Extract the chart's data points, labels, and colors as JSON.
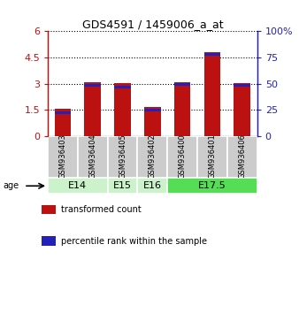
{
  "title": "GDS4591 / 1459006_a_at",
  "samples": [
    "GSM936403",
    "GSM936404",
    "GSM936405",
    "GSM936402",
    "GSM936400",
    "GSM936401",
    "GSM936406"
  ],
  "transformed_counts": [
    1.55,
    3.08,
    3.02,
    1.68,
    3.08,
    4.78,
    3.03
  ],
  "percentile_ranks_pct": [
    22,
    48,
    47,
    25,
    49,
    78,
    48
  ],
  "ylim_left": [
    0,
    6
  ],
  "ylim_right": [
    0,
    100
  ],
  "yticks_left": [
    0,
    1.5,
    3.0,
    4.5,
    6.0
  ],
  "yticks_right": [
    0,
    25,
    50,
    75,
    100
  ],
  "ytick_labels_left": [
    "0",
    "1.5",
    "3",
    "4.5",
    "6"
  ],
  "ytick_labels_right": [
    "0",
    "25",
    "50",
    "75",
    "100%"
  ],
  "age_groups": [
    {
      "label": "E14",
      "start": 0,
      "end": 2,
      "color": "#ccf2cc"
    },
    {
      "label": "E15",
      "start": 2,
      "end": 3,
      "color": "#ccf2cc"
    },
    {
      "label": "E16",
      "start": 3,
      "end": 4,
      "color": "#ccf2cc"
    },
    {
      "label": "E17.5",
      "start": 4,
      "end": 7,
      "color": "#55dd55"
    }
  ],
  "bar_color": "#bb1111",
  "percentile_color": "#2222bb",
  "bar_width": 0.55,
  "sample_box_color": "#cccccc",
  "legend_items": [
    {
      "label": "transformed count",
      "color": "#bb1111"
    },
    {
      "label": "percentile rank within the sample",
      "color": "#2222bb"
    }
  ]
}
